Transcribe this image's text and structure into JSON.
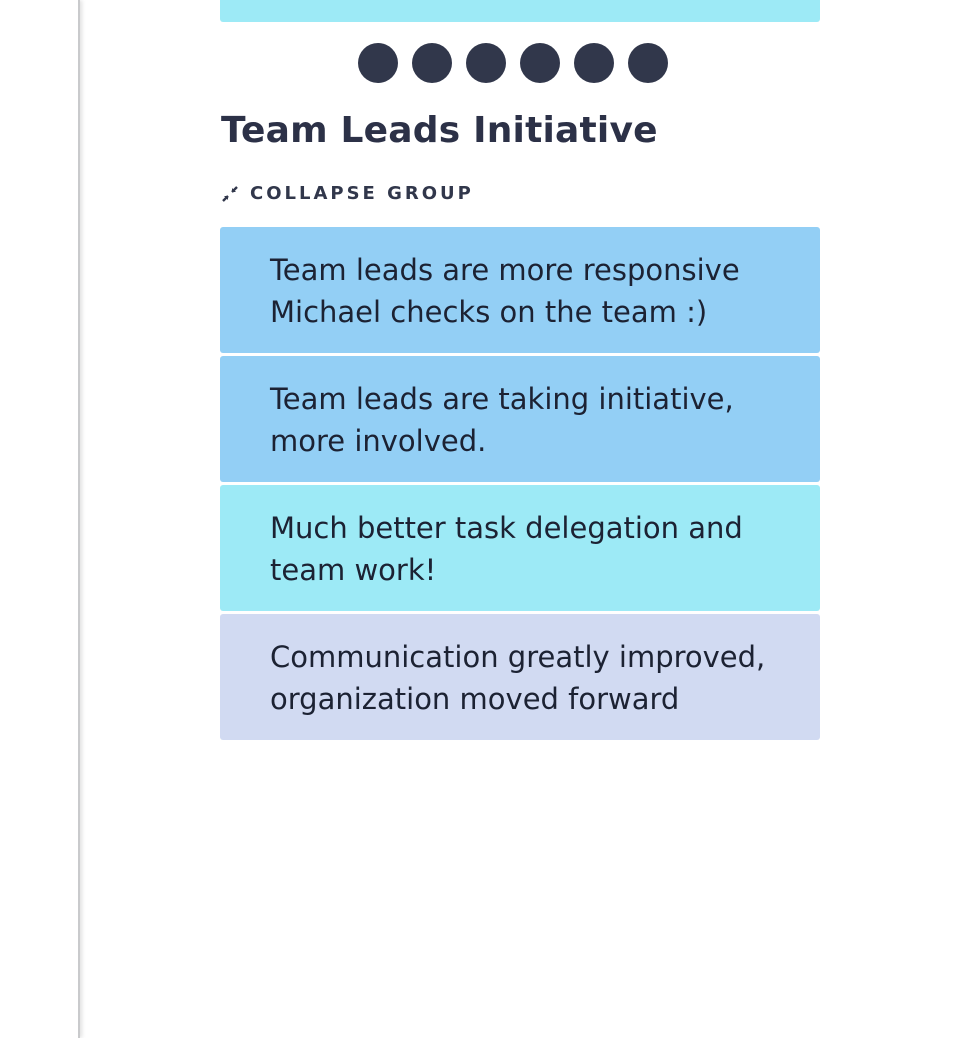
{
  "colors": {
    "card_blue": "#93cff5",
    "card_cyan": "#9deaf6",
    "card_lavender": "#d1daf2",
    "dot": "#31374b",
    "title": "#2c3147"
  },
  "top_card": {
    "color": "#9deaf6"
  },
  "voting_dots": {
    "count": 6,
    "items": [
      "dot",
      "dot",
      "dot",
      "dot",
      "dot",
      "dot"
    ]
  },
  "group": {
    "title": "Team Leads Initiative",
    "collapse_label": "COLLAPSE GROUP",
    "collapse_icon": "collapse-arrows-icon",
    "cards": [
      {
        "text_line1": "Team leads are more responsive",
        "text_line2": "Michael checks on the team :)",
        "color": "#93cff5"
      },
      {
        "text_line1": "Team leads are taking initiative,",
        "text_line2": "more involved.",
        "color": "#93cff5"
      },
      {
        "text_line1": "Much better task delegation and",
        "text_line2": "team work!",
        "color": "#9deaf6"
      },
      {
        "text_line1": "Communication greatly improved,",
        "text_line2": "organization moved forward",
        "color": "#d1daf2"
      }
    ]
  }
}
